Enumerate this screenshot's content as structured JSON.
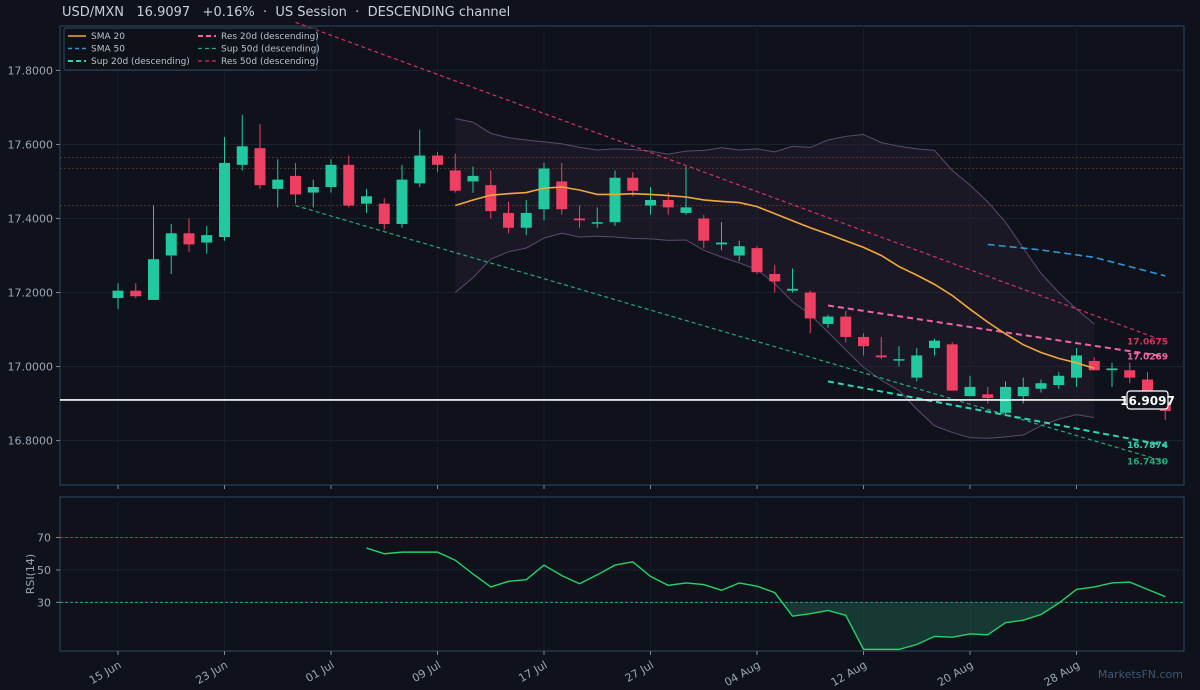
{
  "header": {
    "title": "USD/MXN   16.9097   +0.16%  ·  US Session  ·  DESCENDING channel",
    "watermark": "MarketsFN.com"
  },
  "colors": {
    "bg": "#0f121a",
    "up": "#22c9a0",
    "down": "#ef3f62",
    "sma20": "#f2a93b",
    "sma50": "#2f95d8",
    "sup20": "#2fd6b4",
    "sup50": "#26a97a",
    "res20": "#f065a8",
    "res50": "#d6325f",
    "rsi": "#25d36a",
    "band": "#5b4a72"
  },
  "chart_data": [
    {
      "type": "candlestick",
      "pair": "USD/MXN",
      "ylim": [
        16.68,
        17.92
      ],
      "x_ticks": [
        {
          "label": "15 Jun",
          "i": 0
        },
        {
          "label": "23 Jun",
          "i": 6
        },
        {
          "label": "01 Jul",
          "i": 12
        },
        {
          "label": "09 Jul",
          "i": 18
        },
        {
          "label": "17 Jul",
          "i": 24
        },
        {
          "label": "27 Jul",
          "i": 30
        },
        {
          "label": "04 Aug",
          "i": 36
        },
        {
          "label": "12 Aug",
          "i": 42
        },
        {
          "label": "20 Aug",
          "i": 48
        },
        {
          "label": "28 Aug",
          "i": 54
        }
      ],
      "y_ticks": [
        "16.8000",
        "17.0000",
        "17.2000",
        "17.4000",
        "17.6000",
        "17.8000"
      ],
      "candles": [
        {
          "o": 17.185,
          "h": 17.225,
          "l": 17.155,
          "c": 17.205
        },
        {
          "o": 17.205,
          "h": 17.225,
          "l": 17.185,
          "c": 17.19
        },
        {
          "o": 17.18,
          "h": 17.435,
          "l": 17.18,
          "c": 17.29
        },
        {
          "o": 17.3,
          "h": 17.385,
          "l": 17.25,
          "c": 17.36
        },
        {
          "o": 17.36,
          "h": 17.4,
          "l": 17.31,
          "c": 17.33
        },
        {
          "o": 17.335,
          "h": 17.38,
          "l": 17.305,
          "c": 17.355
        },
        {
          "o": 17.35,
          "h": 17.62,
          "l": 17.34,
          "c": 17.55
        },
        {
          "o": 17.545,
          "h": 17.68,
          "l": 17.53,
          "c": 17.595
        },
        {
          "o": 17.59,
          "h": 17.655,
          "l": 17.48,
          "c": 17.49
        },
        {
          "o": 17.48,
          "h": 17.56,
          "l": 17.43,
          "c": 17.505
        },
        {
          "o": 17.515,
          "h": 17.55,
          "l": 17.44,
          "c": 17.465
        },
        {
          "o": 17.47,
          "h": 17.505,
          "l": 17.43,
          "c": 17.485
        },
        {
          "o": 17.485,
          "h": 17.56,
          "l": 17.47,
          "c": 17.545
        },
        {
          "o": 17.545,
          "h": 17.57,
          "l": 17.43,
          "c": 17.435
        },
        {
          "o": 17.44,
          "h": 17.48,
          "l": 17.415,
          "c": 17.46
        },
        {
          "o": 17.44,
          "h": 17.455,
          "l": 17.37,
          "c": 17.385
        },
        {
          "o": 17.385,
          "h": 17.545,
          "l": 17.375,
          "c": 17.505
        },
        {
          "o": 17.495,
          "h": 17.64,
          "l": 17.485,
          "c": 17.57
        },
        {
          "o": 17.57,
          "h": 17.58,
          "l": 17.525,
          "c": 17.545
        },
        {
          "o": 17.53,
          "h": 17.575,
          "l": 17.47,
          "c": 17.475
        },
        {
          "o": 17.5,
          "h": 17.54,
          "l": 17.47,
          "c": 17.515
        },
        {
          "o": 17.49,
          "h": 17.53,
          "l": 17.4,
          "c": 17.42
        },
        {
          "o": 17.415,
          "h": 17.445,
          "l": 17.36,
          "c": 17.375
        },
        {
          "o": 17.375,
          "h": 17.45,
          "l": 17.355,
          "c": 17.415
        },
        {
          "o": 17.425,
          "h": 17.55,
          "l": 17.395,
          "c": 17.535
        },
        {
          "o": 17.5,
          "h": 17.55,
          "l": 17.41,
          "c": 17.425
        },
        {
          "o": 17.4,
          "h": 17.435,
          "l": 17.375,
          "c": 17.395
        },
        {
          "o": 17.39,
          "h": 17.43,
          "l": 17.375,
          "c": 17.39
        },
        {
          "o": 17.39,
          "h": 17.53,
          "l": 17.38,
          "c": 17.51
        },
        {
          "o": 17.51,
          "h": 17.525,
          "l": 17.46,
          "c": 17.475
        },
        {
          "o": 17.435,
          "h": 17.485,
          "l": 17.41,
          "c": 17.45
        },
        {
          "o": 17.45,
          "h": 17.47,
          "l": 17.41,
          "c": 17.43
        },
        {
          "o": 17.415,
          "h": 17.54,
          "l": 17.41,
          "c": 17.43
        },
        {
          "o": 17.4,
          "h": 17.41,
          "l": 17.32,
          "c": 17.34
        },
        {
          "o": 17.33,
          "h": 17.39,
          "l": 17.315,
          "c": 17.335
        },
        {
          "o": 17.3,
          "h": 17.34,
          "l": 17.285,
          "c": 17.325
        },
        {
          "o": 17.32,
          "h": 17.325,
          "l": 17.25,
          "c": 17.255
        },
        {
          "o": 17.25,
          "h": 17.275,
          "l": 17.2,
          "c": 17.23
        },
        {
          "o": 17.205,
          "h": 17.265,
          "l": 17.2,
          "c": 17.21
        },
        {
          "o": 17.2,
          "h": 17.205,
          "l": 17.09,
          "c": 17.13
        },
        {
          "o": 17.115,
          "h": 17.14,
          "l": 17.105,
          "c": 17.135
        },
        {
          "o": 17.135,
          "h": 17.15,
          "l": 17.065,
          "c": 17.08
        },
        {
          "o": 17.08,
          "h": 17.09,
          "l": 17.03,
          "c": 17.055
        },
        {
          "o": 17.03,
          "h": 17.08,
          "l": 17.02,
          "c": 17.025
        },
        {
          "o": 17.02,
          "h": 17.055,
          "l": 17.0,
          "c": 17.02
        },
        {
          "o": 16.97,
          "h": 17.05,
          "l": 16.96,
          "c": 17.03
        },
        {
          "o": 17.05,
          "h": 17.075,
          "l": 17.03,
          "c": 17.07
        },
        {
          "o": 17.06,
          "h": 17.065,
          "l": 16.935,
          "c": 16.935
        },
        {
          "o": 16.92,
          "h": 16.975,
          "l": 16.92,
          "c": 16.945
        },
        {
          "o": 16.925,
          "h": 16.945,
          "l": 16.9,
          "c": 16.915
        },
        {
          "o": 16.875,
          "h": 16.96,
          "l": 16.87,
          "c": 16.945
        },
        {
          "o": 16.92,
          "h": 16.97,
          "l": 16.9,
          "c": 16.945
        },
        {
          "o": 16.94,
          "h": 16.965,
          "l": 16.93,
          "c": 16.955
        },
        {
          "o": 16.95,
          "h": 16.985,
          "l": 16.94,
          "c": 16.975
        },
        {
          "o": 16.97,
          "h": 17.05,
          "l": 16.945,
          "c": 17.03
        },
        {
          "o": 17.015,
          "h": 17.025,
          "l": 16.99,
          "c": 16.99
        },
        {
          "o": 16.99,
          "h": 17.01,
          "l": 16.945,
          "c": 16.995
        },
        {
          "o": 16.99,
          "h": 17.01,
          "l": 16.955,
          "c": 16.97
        },
        {
          "o": 16.965,
          "h": 16.985,
          "l": 16.905,
          "c": 16.915
        },
        {
          "o": 16.905,
          "h": 16.925,
          "l": 16.855,
          "c": 16.88
        }
      ],
      "sma20": {
        "start": 19,
        "values": [
          17.435,
          17.45,
          17.463,
          17.467,
          17.47,
          17.482,
          17.485,
          17.477,
          17.465,
          17.465,
          17.467,
          17.465,
          17.462,
          17.458,
          17.45,
          17.446,
          17.443,
          17.432,
          17.413,
          17.394,
          17.375,
          17.358,
          17.34,
          17.322,
          17.3,
          17.27,
          17.247,
          17.222,
          17.192,
          17.155,
          17.12,
          17.088,
          17.059,
          17.038,
          17.022,
          17.01,
          16.995
        ]
      },
      "bollinger": {
        "start": 19,
        "upper": [
          17.67,
          17.66,
          17.63,
          17.618,
          17.612,
          17.607,
          17.602,
          17.592,
          17.585,
          17.588,
          17.586,
          17.582,
          17.574,
          17.582,
          17.584,
          17.591,
          17.585,
          17.588,
          17.58,
          17.595,
          17.592,
          17.612,
          17.622,
          17.627,
          17.605,
          17.595,
          17.588,
          17.584,
          17.53,
          17.49,
          17.445,
          17.39,
          17.32,
          17.252,
          17.2,
          17.155,
          17.115
        ],
        "lower": [
          17.2,
          17.24,
          17.29,
          17.31,
          17.32,
          17.347,
          17.36,
          17.35,
          17.352,
          17.35,
          17.346,
          17.345,
          17.341,
          17.342,
          17.314,
          17.296,
          17.28,
          17.262,
          17.224,
          17.175,
          17.14,
          17.093,
          17.045,
          16.998,
          16.963,
          16.935,
          16.885,
          16.84,
          16.822,
          16.808,
          16.806,
          16.81,
          16.815,
          16.84,
          16.858,
          16.87,
          16.862
        ]
      },
      "sma50": {
        "points": [
          [
            49,
            17.33
          ],
          [
            52,
            17.315
          ],
          [
            55,
            17.295
          ],
          [
            59,
            17.245
          ]
        ]
      },
      "levels": [
        17.565,
        17.535,
        17.435
      ],
      "trendlines": {
        "res50": {
          "from": [
            10,
            17.93
          ],
          "to": [
            59,
            17.068
          ]
        },
        "sup50": {
          "from": [
            10,
            17.435
          ],
          "to": [
            59,
            16.743
          ]
        },
        "res20": {
          "from": [
            40,
            17.165
          ],
          "to": [
            59,
            17.027
          ]
        },
        "sup20": {
          "from": [
            40,
            16.96
          ],
          "to": [
            59,
            16.787
          ]
        }
      },
      "current_price": 16.9097,
      "right_labels": [
        {
          "text": "17.0675",
          "value": 17.0675,
          "series": "res50"
        },
        {
          "text": "17.0269",
          "value": 17.0269,
          "series": "res20"
        },
        {
          "text": "16.9097",
          "value": 16.9097,
          "series": "price"
        },
        {
          "text": "16.7874",
          "value": 16.7874,
          "series": "sup20"
        },
        {
          "text": "16.7430",
          "value": 16.743,
          "series": "sup50"
        }
      ],
      "legend": {
        "placement": "top-left",
        "entries": [
          {
            "label": "SMA 20",
            "series": "sma20",
            "style": "solid"
          },
          {
            "label": "SMA 50",
            "series": "sma50",
            "style": "dashed"
          },
          {
            "label": "Sup 20d (descending)",
            "series": "sup20",
            "style": "dashed"
          },
          {
            "label": "Res 20d (descending)",
            "series": "res20",
            "style": "dashed"
          },
          {
            "label": "Sup 50d (descending)",
            "series": "sup50",
            "style": "dashed"
          },
          {
            "label": "Res 50d (descending)",
            "series": "res50",
            "style": "dashed"
          }
        ]
      }
    },
    {
      "type": "line",
      "ylabel": "RSI(14)",
      "ylim": [
        0,
        95
      ],
      "y_ticks": [
        "30",
        "50",
        "70"
      ],
      "reference_lines": [
        70,
        30
      ],
      "x_start": 14,
      "values": [
        63.5,
        60.0,
        61.0,
        61.0,
        61.0,
        56.0,
        47.5,
        39.5,
        43.0,
        44.0,
        53.0,
        46.5,
        41.5,
        47.0,
        53.0,
        55.0,
        46.0,
        40.5,
        42.0,
        41.0,
        37.5,
        42.0,
        40.0,
        36.0,
        21.5,
        23.0,
        25.0,
        22.0,
        1.0,
        1.0,
        1.0,
        4.0,
        9.0,
        8.5,
        10.5,
        10.0,
        17.5,
        19.0,
        22.5,
        29.5,
        38.0,
        39.5,
        42.0,
        42.5,
        38.0,
        33.5
      ],
      "fill_below": 30
    }
  ]
}
